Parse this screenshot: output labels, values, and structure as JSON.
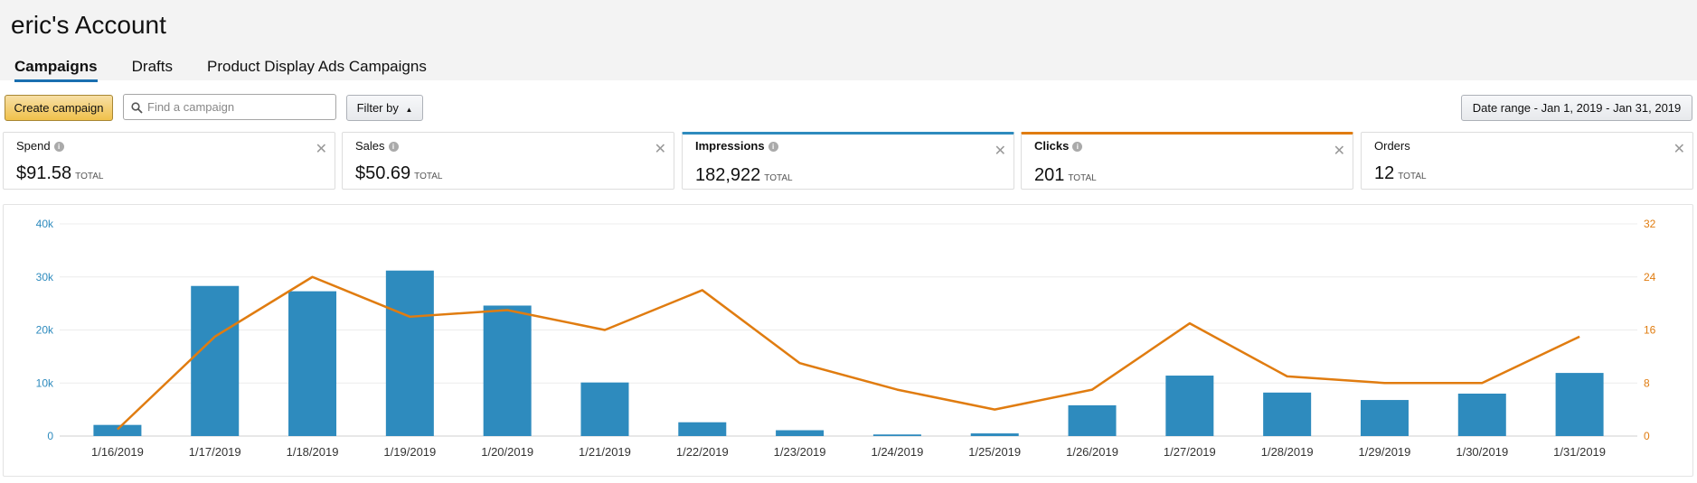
{
  "header": {
    "account_title": "eric's Account"
  },
  "tabs": [
    {
      "label": "Campaigns",
      "active": true
    },
    {
      "label": "Drafts",
      "active": false
    },
    {
      "label": "Product Display Ads Campaigns",
      "active": false
    }
  ],
  "toolbar": {
    "create_label": "Create campaign",
    "search_placeholder": "Find a campaign",
    "filter_label": "Filter by",
    "date_range_label": "Date range - Jan 1, 2019 - Jan 31, 2019"
  },
  "metrics": [
    {
      "label": "Spend",
      "value": "$91.58",
      "total_label": "TOTAL",
      "has_info": true
    },
    {
      "label": "Sales",
      "value": "$50.69",
      "total_label": "TOTAL",
      "has_info": true
    },
    {
      "label": "Impressions",
      "value": "182,922",
      "total_label": "TOTAL",
      "has_info": true,
      "highlight": "#2e8bbe"
    },
    {
      "label": "Clicks",
      "value": "201",
      "total_label": "TOTAL",
      "has_info": true,
      "highlight": "#e07c10"
    },
    {
      "label": "Orders",
      "value": "12",
      "total_label": "TOTAL",
      "has_info": false
    }
  ],
  "chart_data": {
    "type": "bar",
    "categories": [
      "1/16/2019",
      "1/17/2019",
      "1/18/2019",
      "1/19/2019",
      "1/20/2019",
      "1/21/2019",
      "1/22/2019",
      "1/23/2019",
      "1/24/2019",
      "1/25/2019",
      "1/26/2019",
      "1/27/2019",
      "1/28/2019",
      "1/29/2019",
      "1/30/2019",
      "1/31/2019"
    ],
    "series": [
      {
        "type": "bar",
        "axis": "left",
        "color": "#2e8bbe",
        "values": [
          2100,
          28300,
          27300,
          31200,
          24600,
          10100,
          2600,
          1100,
          300,
          500,
          5800,
          11400,
          8200,
          6800,
          8000,
          11900
        ]
      },
      {
        "type": "line",
        "axis": "right",
        "color": "#e07c10",
        "values": [
          1,
          15,
          24,
          18,
          19,
          16,
          22,
          11,
          7,
          4,
          7,
          17,
          9,
          8,
          8,
          15
        ]
      }
    ],
    "y_left": {
      "ticks": [
        "0",
        "10k",
        "20k",
        "30k",
        "40k"
      ],
      "range": [
        0,
        40000
      ],
      "color": "#2e8bbe"
    },
    "y_right": {
      "ticks": [
        "0",
        "8",
        "16",
        "24",
        "32"
      ],
      "range": [
        0,
        32
      ],
      "color": "#e07c10"
    },
    "grid": true
  }
}
